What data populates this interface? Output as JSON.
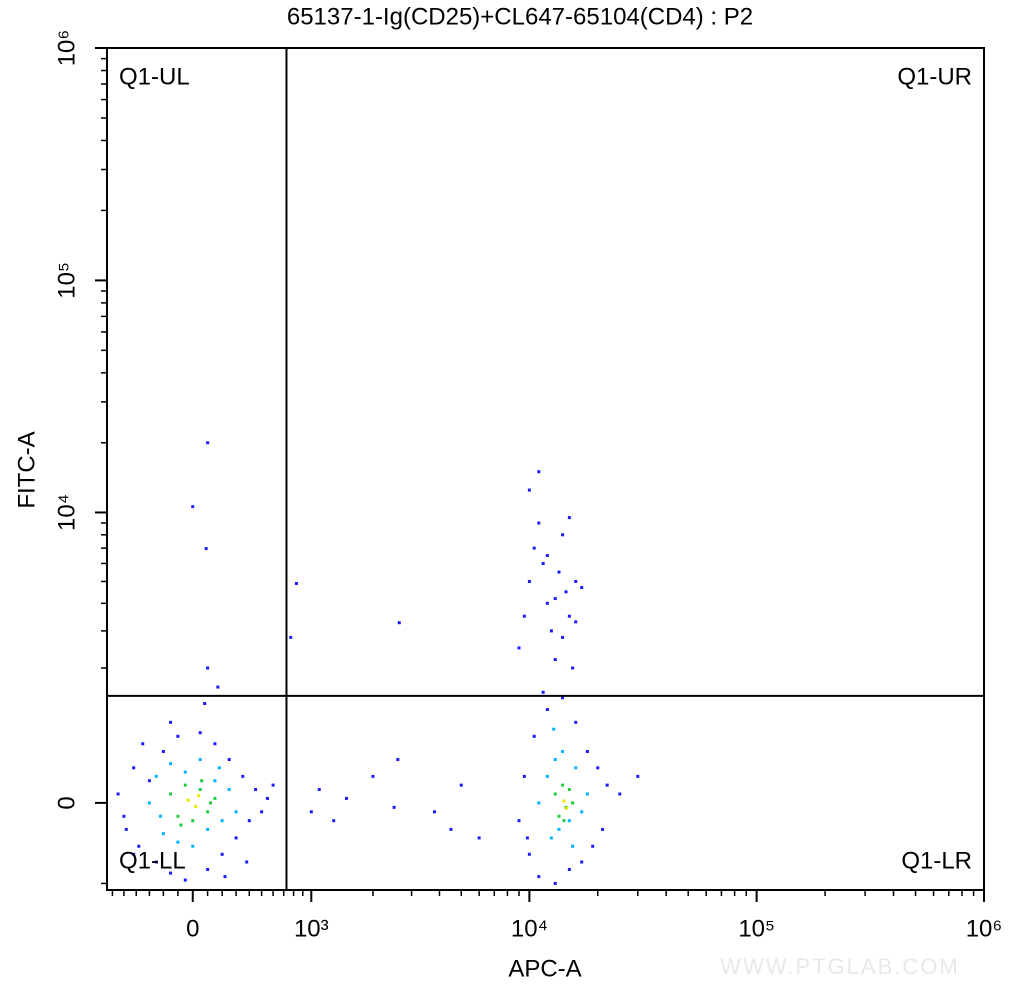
{
  "chart_data": {
    "type": "scatter",
    "title": "65137-1-Ig(CD25)+CL647-65104(CD4) : P2",
    "x_label": "APC-A",
    "y_label": "FITC-A",
    "x_scale": "biexponential",
    "y_scale": "biexponential",
    "xlim": [
      -650,
      1000000
    ],
    "ylim": [
      -1100,
      1000000
    ],
    "xticks": [
      0,
      {
        "value": 1000,
        "label": "10³"
      },
      {
        "value": 10000,
        "label": "10⁴"
      },
      {
        "value": 100000,
        "label": "10⁵"
      },
      {
        "value": 1000000,
        "label": "10⁶"
      }
    ],
    "yticks": [
      0,
      {
        "value": 10000,
        "label": "10⁴"
      },
      {
        "value": 100000,
        "label": "10⁵"
      },
      {
        "value": 1000000,
        "label": "10⁶"
      }
    ],
    "xminorticks": [
      -600,
      -500,
      -400,
      -300,
      -200,
      -100,
      100,
      200,
      300,
      400,
      500,
      600,
      700,
      800,
      900,
      2000,
      3000,
      4000,
      5000,
      6000,
      7000,
      8000,
      9000,
      20000,
      30000,
      40000,
      50000,
      60000,
      70000,
      80000,
      90000,
      200000,
      300000,
      400000,
      500000,
      600000,
      700000,
      800000,
      900000
    ],
    "yminorticks": [
      -1000,
      2000,
      3000,
      4000,
      5000,
      6000,
      7000,
      8000,
      9000,
      20000,
      30000,
      40000,
      50000,
      60000,
      70000,
      80000,
      90000,
      200000,
      300000,
      400000,
      500000,
      600000,
      700000,
      800000,
      900000
    ],
    "gates": {
      "x": 727,
      "y": 1434,
      "color": "#000000"
    },
    "quadrants": {
      "upper_left": "Q1-UL",
      "upper_right": "Q1-UR",
      "lower_left": "Q1-LL",
      "lower_right": "Q1-LR"
    },
    "watermark": "WWW.PTGLAB.COM",
    "series": [
      {
        "color": "#1a1aff",
        "x": [
          -550,
          -480,
          -420,
          -380,
          -300,
          -250,
          -200,
          -150,
          -100,
          -50,
          50,
          100,
          150,
          200,
          250,
          300,
          350,
          400,
          450,
          500,
          550,
          600,
          -500,
          -350,
          -150,
          80,
          220,
          380,
          -420,
          170,
          100,
          0,
          90,
          100,
          1000,
          1100,
          1300,
          1500,
          2000,
          2500,
          2600,
          3800,
          4500,
          5000,
          6000,
          770,
          830,
          2640,
          9000,
          9500,
          10000,
          10500,
          11000,
          12000,
          13000,
          14000,
          15000,
          16000,
          17000,
          18000,
          19000,
          20000,
          22000,
          25000,
          30000,
          9800,
          21000,
          11500,
          9000,
          9500,
          10000,
          10500,
          11000,
          11500,
          12000,
          12500,
          13000,
          13500,
          14000,
          14500,
          15000,
          15500,
          16000,
          10000,
          11000,
          12000,
          13000,
          14000,
          15000,
          16000,
          17000
        ],
        "y": [
          100,
          -300,
          400,
          -500,
          250,
          -700,
          600,
          -850,
          800,
          -950,
          850,
          -800,
          700,
          -600,
          500,
          -400,
          300,
          -200,
          150,
          -100,
          50,
          200,
          -150,
          700,
          1000,
          1300,
          -900,
          -700,
          -600,
          1600,
          20000,
          10600,
          6970,
          2000,
          -100,
          150,
          -200,
          50,
          300,
          -50,
          500,
          -100,
          -300,
          200,
          -400,
          2800,
          4900,
          3270,
          -200,
          300,
          -600,
          800,
          -900,
          1200,
          -1000,
          1400,
          -800,
          1000,
          -700,
          600,
          -500,
          400,
          200,
          100,
          300,
          -400,
          -300,
          1500,
          2500,
          3500,
          5000,
          7000,
          9000,
          6000,
          4000,
          3000,
          2200,
          5500,
          8000,
          4500,
          3500,
          2000,
          5000,
          12500,
          15000,
          6500,
          4200,
          2800,
          9500,
          3300,
          4700
        ]
      },
      {
        "color": "#00b4ff",
        "x": [
          -300,
          -250,
          -200,
          -150,
          -100,
          -50,
          0,
          50,
          100,
          150,
          200,
          250,
          300,
          -220,
          180,
          11000,
          12000,
          12500,
          13000,
          13500,
          14000,
          15000,
          16000,
          17000,
          18000,
          12800,
          15500
        ],
        "y": [
          0,
          300,
          -350,
          450,
          -450,
          350,
          -500,
          500,
          -300,
          250,
          -200,
          150,
          -100,
          -150,
          400,
          0,
          300,
          -400,
          500,
          -300,
          600,
          -200,
          400,
          -100,
          100,
          900,
          -500
        ]
      },
      {
        "color": "#1ecc3c",
        "x": [
          -150,
          -100,
          -50,
          0,
          50,
          100,
          150,
          -80,
          60,
          120,
          13000,
          13500,
          14000,
          14500,
          15000,
          15500,
          14200
        ],
        "y": [
          100,
          -150,
          200,
          -200,
          150,
          -100,
          50,
          -250,
          250,
          0,
          100,
          -150,
          200,
          -50,
          150,
          0,
          -200
        ]
      },
      {
        "color": "#e8e800",
        "x": [
          -30,
          20,
          40,
          14200,
          14600
        ],
        "y": [
          30,
          -40,
          80,
          20,
          -60
        ]
      }
    ]
  }
}
